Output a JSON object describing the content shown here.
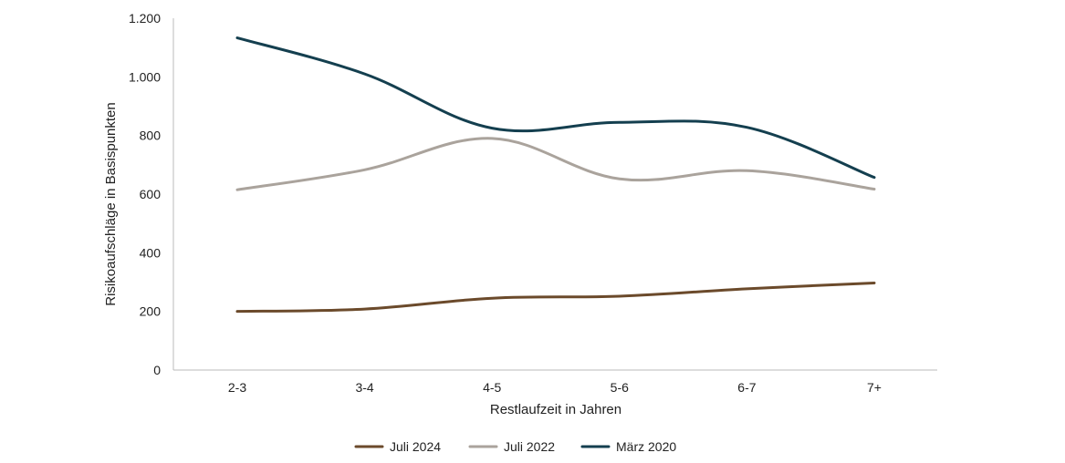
{
  "chart_data": {
    "type": "line",
    "categories": [
      "2-3",
      "3-4",
      "4-5",
      "5-6",
      "6-7",
      "7+"
    ],
    "series": [
      {
        "name": "Juli 2024",
        "color": "#6b4a2b",
        "values": [
          200,
          208,
          245,
          252,
          277,
          297
        ]
      },
      {
        "name": "Juli 2022",
        "color": "#aaa39c",
        "values": [
          615,
          683,
          790,
          652,
          680,
          617
        ]
      },
      {
        "name": "März 2020",
        "color": "#143f4f",
        "values": [
          1133,
          1010,
          825,
          845,
          828,
          657
        ]
      }
    ],
    "xlabel": "Restlaufzeit in Jahren",
    "ylabel": "Risikoaufschläge in Basispunkten",
    "ylim": [
      0,
      1200
    ],
    "yticks": [
      {
        "value": 0,
        "label": "0"
      },
      {
        "value": 200,
        "label": "200"
      },
      {
        "value": 400,
        "label": "400"
      },
      {
        "value": 600,
        "label": "600"
      },
      {
        "value": 800,
        "label": "800"
      },
      {
        "value": 1000,
        "label": "1.000"
      },
      {
        "value": 1200,
        "label": "1.200"
      }
    ],
    "grid": false,
    "legend": "bottom-center",
    "axis_color": "#bbbbbb"
  }
}
